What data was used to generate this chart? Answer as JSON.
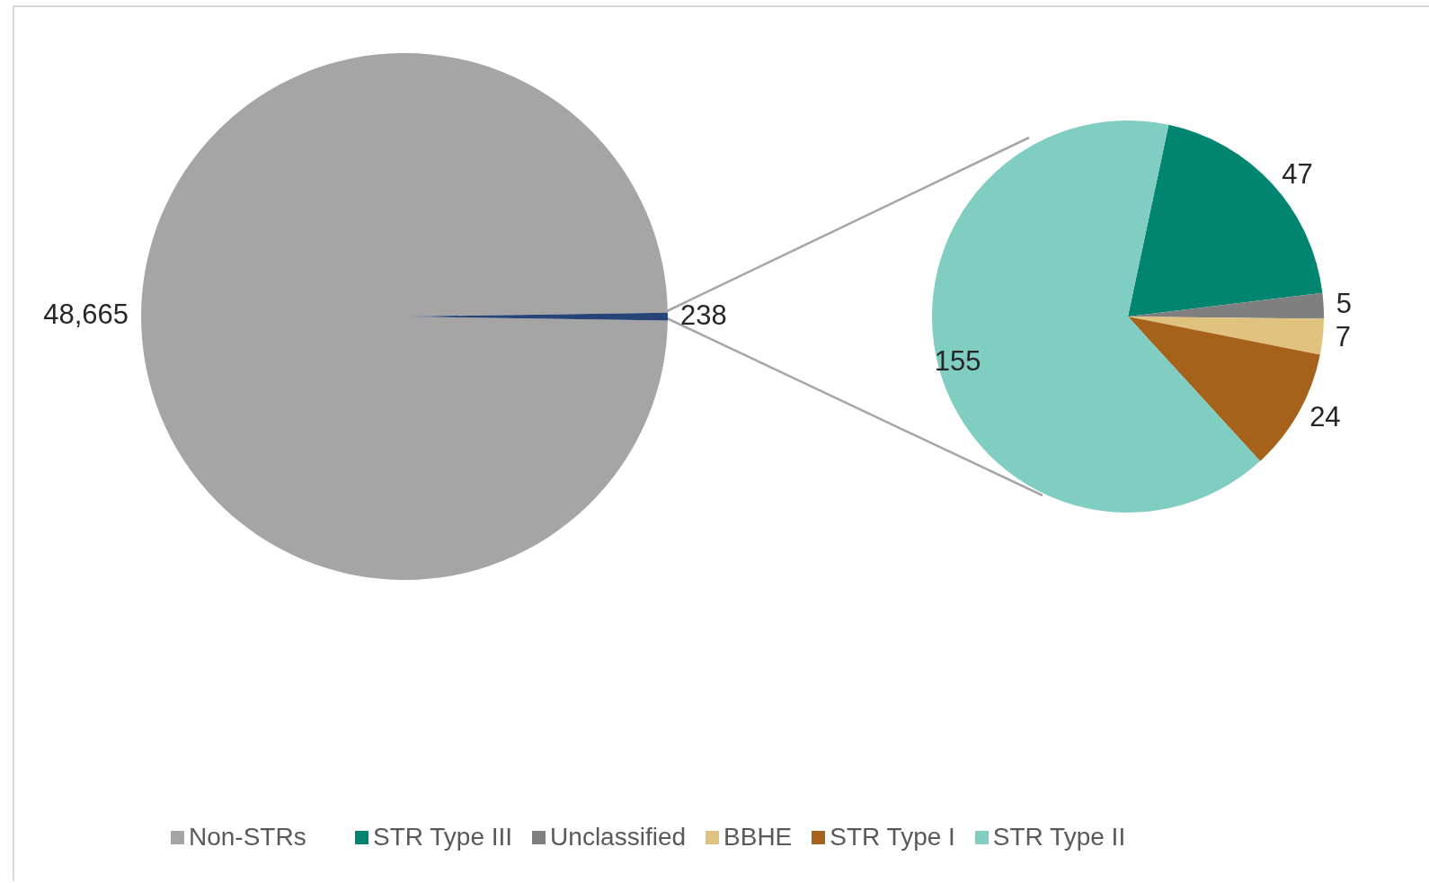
{
  "chart_data": [
    {
      "type": "pie",
      "categories": [
        "Non-STRs",
        null
      ],
      "values": [
        48665,
        238
      ],
      "value_labels": [
        "48,665",
        "238"
      ],
      "colors": [
        "#a5a5a5",
        "#264478"
      ],
      "legend": "bottom"
    },
    {
      "type": "pie",
      "categories": [
        "STR Type III",
        "Unclassified",
        "BBHE",
        "STR Type I",
        "STR Type II"
      ],
      "values": [
        47,
        5,
        7,
        24,
        155
      ],
      "colors": [
        "#018571",
        "#7f7f7f",
        "#dfc27d",
        "#a6611a",
        "#80cdc1"
      ],
      "data_labels": true,
      "legend": "bottom"
    }
  ]
}
